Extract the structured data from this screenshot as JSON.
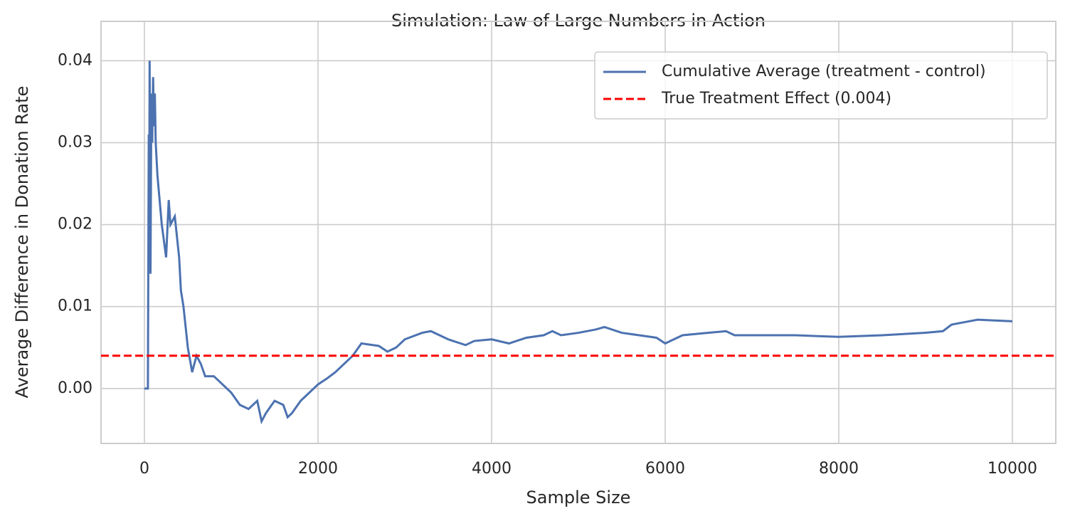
{
  "chart_data": {
    "type": "line",
    "title": "Simulation: Law of Large Numbers in Action",
    "x_label": "Sample Size",
    "y_label": "Average Difference in Donation Rate",
    "x": [
      0,
      40,
      50,
      55,
      60,
      70,
      80,
      90,
      100,
      110,
      120,
      130,
      150,
      200,
      250,
      280,
      300,
      350,
      400,
      420,
      450,
      500,
      550,
      600,
      650,
      700,
      800,
      900,
      1000,
      1100,
      1200,
      1300,
      1350,
      1400,
      1500,
      1600,
      1650,
      1700,
      1800,
      1900,
      2000,
      2100,
      2200,
      2300,
      2400,
      2500,
      2700,
      2800,
      2900,
      3000,
      3200,
      3300,
      3500,
      3700,
      3800,
      4000,
      4200,
      4400,
      4600,
      4700,
      4800,
      5000,
      5200,
      5300,
      5500,
      5700,
      5900,
      6000,
      6200,
      6500,
      6700,
      6800,
      7000,
      7500,
      8000,
      8500,
      9000,
      9200,
      9300,
      9500,
      9600,
      9800,
      10000
    ],
    "series": [
      {
        "name": "Cumulative Average (treatment - control)",
        "color": "#4c72b0",
        "values": [
          0,
          0,
          0.031,
          0.02,
          0.04,
          0.014,
          0.036,
          0.03,
          0.038,
          0.032,
          0.036,
          0.03,
          0.026,
          0.02,
          0.016,
          0.023,
          0.02,
          0.021,
          0.016,
          0.012,
          0.01,
          0.005,
          0.002,
          0.004,
          0.003,
          0.0015,
          0.0015,
          0.0005,
          -0.0005,
          -0.002,
          -0.0025,
          -0.0015,
          -0.004,
          -0.003,
          -0.0015,
          -0.002,
          -0.0035,
          -0.003,
          -0.0015,
          -0.0005,
          0.0005,
          0.0012,
          0.002,
          0.003,
          0.004,
          0.0055,
          0.0052,
          0.0045,
          0.005,
          0.006,
          0.0068,
          0.007,
          0.006,
          0.0053,
          0.0058,
          0.006,
          0.0055,
          0.0062,
          0.0065,
          0.007,
          0.0065,
          0.0068,
          0.0072,
          0.0075,
          0.0068,
          0.0065,
          0.0062,
          0.0055,
          0.0065,
          0.0068,
          0.007,
          0.0065,
          0.0065,
          0.0065,
          0.0063,
          0.0065,
          0.0068,
          0.007,
          0.0078,
          0.0082,
          0.0084,
          0.0083,
          0.0082
        ]
      }
    ],
    "reference_line": {
      "name": "True Treatment Effect (0.004)",
      "value": 0.004,
      "color": "#ff0000"
    },
    "xlim": [
      -500,
      10500
    ],
    "xticks": [
      0,
      2000,
      4000,
      6000,
      8000,
      10000
    ],
    "ylim": [
      -0.0067,
      0.0448
    ],
    "yticks": [
      {
        "value": 0,
        "label": "0.00"
      },
      {
        "value": 0.01,
        "label": "0.01"
      },
      {
        "value": 0.02,
        "label": "0.02"
      },
      {
        "value": 0.03,
        "label": "0.03"
      },
      {
        "value": 0.04,
        "label": "0.04"
      }
    ],
    "grid": true,
    "legend": "upper right"
  }
}
